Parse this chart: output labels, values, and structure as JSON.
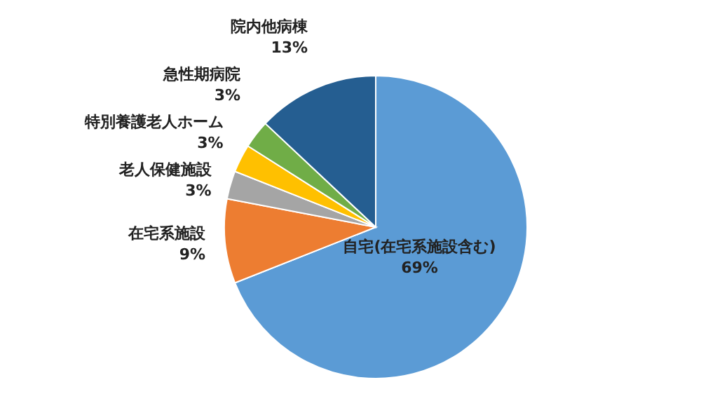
{
  "chart_data": {
    "type": "pie",
    "categories": [
      "自宅(在宅系施設含む)",
      "在宅系施設",
      "老人保健施設",
      "特別養護老人ホーム",
      "急性期病院",
      "院内他病棟"
    ],
    "values": [
      69,
      9,
      3,
      3,
      3,
      13
    ],
    "value_labels": [
      "69%",
      "9%",
      "3%",
      "3%",
      "3%",
      "13%"
    ],
    "colors": [
      "#5b9bd5",
      "#ed7d31",
      "#a5a5a5",
      "#ffc000",
      "#70ad47",
      "#255e91"
    ]
  }
}
